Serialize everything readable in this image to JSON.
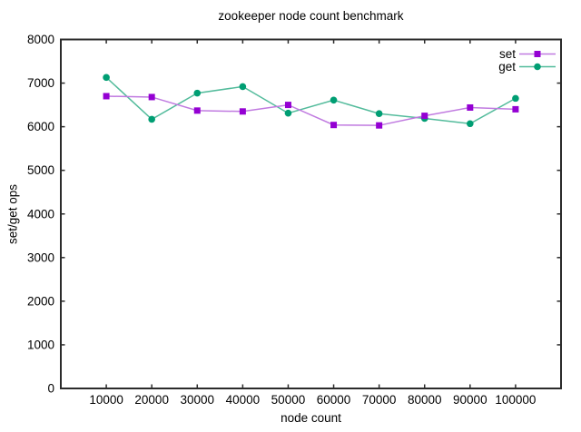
{
  "chart_data": {
    "type": "line",
    "title": "zookeeper node count benchmark",
    "xlabel": "node count",
    "ylabel": "set/get ops",
    "x": [
      10000,
      20000,
      30000,
      40000,
      50000,
      60000,
      70000,
      80000,
      90000,
      100000
    ],
    "series": [
      {
        "name": "set",
        "marker": "square",
        "marker_color": "#9400d3",
        "line_color": "#c07ae0",
        "values": [
          6700,
          6680,
          6370,
          6350,
          6500,
          6040,
          6030,
          6250,
          6440,
          6400
        ]
      },
      {
        "name": "get",
        "marker": "circle",
        "marker_color": "#009e73",
        "line_color": "#52bb9b",
        "values": [
          7130,
          6170,
          6770,
          6920,
          6310,
          6610,
          6300,
          6190,
          6070,
          6650
        ]
      }
    ],
    "xlim": [
      0,
      110000
    ],
    "ylim": [
      0,
      8000
    ],
    "xticks": {
      "values": [
        10000,
        20000,
        30000,
        40000,
        50000,
        60000,
        70000,
        80000,
        90000,
        100000
      ],
      "labels": [
        "10000",
        "20000",
        "30000",
        "40000",
        "50000",
        "60000",
        "70000",
        "80000",
        "90000",
        "100000"
      ]
    },
    "yticks": {
      "values": [
        0,
        1000,
        2000,
        3000,
        4000,
        5000,
        6000,
        7000,
        8000
      ],
      "labels": [
        "0",
        "1000",
        "2000",
        "3000",
        "4000",
        "5000",
        "6000",
        "7000",
        "8000"
      ]
    },
    "grid": false,
    "legend_position": "top-right",
    "axis_color": "#2b2b2b",
    "text_color": "#000000",
    "background": "#ffffff"
  }
}
